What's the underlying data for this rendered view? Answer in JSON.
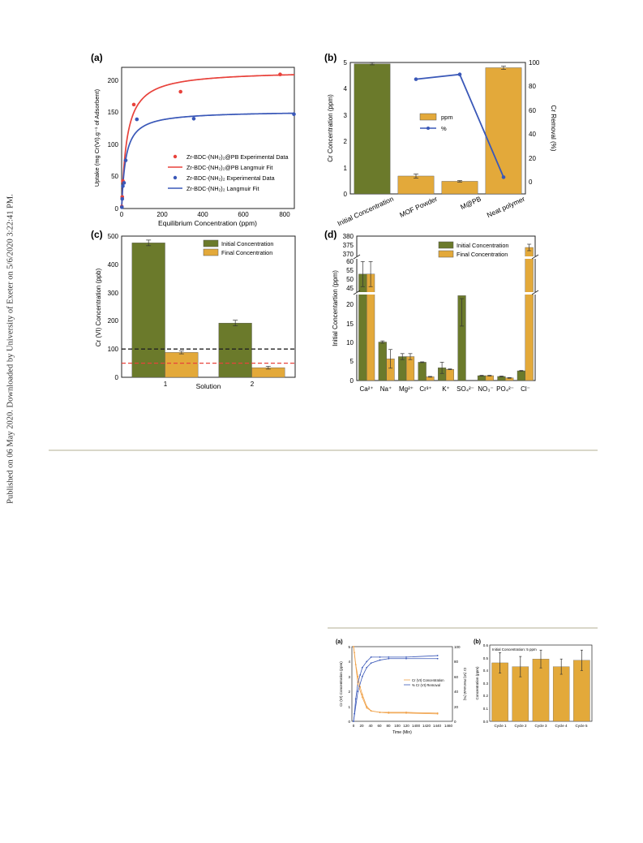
{
  "sidebar_text": "Published on 06 May 2020. Downloaded by University of Exeter on 5/6/2020 3:22:41 PM.",
  "colors": {
    "olive": "#6b7a2b",
    "gold": "#e3a93a",
    "red": "#e8423b",
    "blue": "#3a58b8",
    "orange": "#f0a24a"
  },
  "chart_data": [
    {
      "panel": "(a)",
      "type": "scatter",
      "xlabel": "Equilibrium Concentration (ppm)",
      "ylabel": "Uptake (mg Cr(VI).g⁻¹ of Adsorbent)",
      "xlim": [
        0,
        850
      ],
      "ylim": [
        0,
        220
      ],
      "xticks": [
        "0",
        "200",
        "400",
        "600",
        "800"
      ],
      "yticks": [
        "0",
        "50",
        "100",
        "150",
        "200"
      ],
      "legend": [
        "Zr-BDC-(NH₂)₂@PB Experimental Data",
        "Zr-BDC-(NH₂)₂@PB Langmuir Fit",
        "Zr-BDC-(NH₂)₂ Experimental Data",
        "Zr-BDC-(NH₂)₂ Langmuir Fit"
      ],
      "series": [
        {
          "x": [
            1,
            3,
            6,
            10,
            60,
            290,
            780
          ],
          "y": [
            3,
            18,
            43,
            40,
            162,
            182,
            209
          ]
        },
        {
          "qmax": 215,
          "K": 0.038
        },
        {
          "x": [
            1,
            3,
            6,
            12,
            20,
            75,
            355,
            848
          ],
          "y": [
            2,
            15,
            35,
            40,
            75,
            139,
            140,
            147
          ]
        },
        {
          "qmax": 152,
          "K": 0.05
        }
      ]
    },
    {
      "panel": "(b)",
      "type": "bar",
      "categories": [
        "Initial Concentration",
        "MOF Powder",
        "M@PB",
        "Neat polymer"
      ],
      "values": [
        4.95,
        0.68,
        0.48,
        4.8
      ],
      "errors": [
        0.04,
        0.08,
        0.03,
        0.06
      ],
      "line_values": [
        86,
        90,
        4
      ],
      "ylabel": "Cr Concentration (ppm)",
      "y2label": "Cr Removal (%)",
      "ylim": [
        0,
        5
      ],
      "y2lim": [
        -10,
        100
      ],
      "yticks": [
        "0",
        "1",
        "2",
        "3",
        "4",
        "5"
      ],
      "y2ticks": [
        "0",
        "20",
        "40",
        "60",
        "80",
        "100"
      ],
      "legend": [
        "ppm",
        "%"
      ]
    },
    {
      "panel": "(c)",
      "type": "bar",
      "categories": [
        "1",
        "2"
      ],
      "series": [
        {
          "name": "Initial Concentration",
          "values": [
            476,
            192
          ],
          "errors": [
            10,
            10
          ]
        },
        {
          "name": "Final Concentration",
          "values": [
            88,
            34
          ],
          "errors": [
            5,
            5
          ]
        }
      ],
      "xlabel": "Solution",
      "ylabel": "Cr (VI) Concentration (ppb)",
      "ylim": [
        0,
        500
      ],
      "yticks": [
        "0",
        "100",
        "200",
        "300",
        "400",
        "500"
      ],
      "hlines": [
        100,
        50
      ]
    },
    {
      "panel": "(d)",
      "type": "bar",
      "categories": [
        "Ca²⁺",
        "Na⁺",
        "Mg²⁺",
        "Cr³⁺",
        "K⁺",
        "SO₄²⁻",
        "NO₃⁻",
        "PO₄²⁻",
        "Cl⁻"
      ],
      "series": [
        {
          "name": "Initial Concentration",
          "values": [
            52.5,
            10.3,
            6.4,
            4.9,
            3.4,
            22.7,
            1.3,
            1.1,
            2.6
          ],
          "errors": [
            7,
            0.3,
            0.8,
            0.1,
            1.5,
            0.8,
            0.1,
            0.1,
            0.1
          ]
        },
        {
          "name": "Final Concentration",
          "values": [
            52.5,
            5.8,
            6.4,
            1.0,
            3.0,
            0,
            1.3,
            0.7,
            373
          ],
          "errors": [
            7,
            2.5,
            0.8,
            0.1,
            0.1,
            0,
            0.1,
            0.1,
            2
          ]
        }
      ],
      "ylabel": "Initial Concentartion (ppm)",
      "yticks_low": [
        "0",
        "5",
        "10",
        "15",
        "20"
      ],
      "yticks_mid": [
        "45",
        "50",
        "55",
        "60"
      ],
      "yticks_high": [
        "370",
        "375",
        "380"
      ]
    },
    {
      "panel": "(a)",
      "type": "line",
      "xlabel": "Time (Min)",
      "ylabel": "Cr (VI) Concentration (ppm)",
      "y2label": "Cr (VI) Removal (%)",
      "xticks": [
        "0",
        "20",
        "40",
        "60",
        "80",
        "100",
        "120",
        "1400",
        "1420",
        "1440",
        "1460"
      ],
      "yticks": [
        "0",
        "1",
        "2",
        "3",
        "4",
        "5"
      ],
      "y2ticks": [
        "0",
        "20",
        "40",
        "60",
        "80",
        "100"
      ],
      "legend": [
        "Cr (VI) Concentration",
        "% Cr (VI) Removal"
      ],
      "series": [
        {
          "t": [
            0,
            2,
            5,
            10,
            15,
            20,
            30,
            40,
            60,
            80,
            120,
            1440
          ],
          "y": [
            5.0,
            4.6,
            3.8,
            3.0,
            2.3,
            1.8,
            1.0,
            0.7,
            0.6,
            0.55,
            0.55,
            0.5
          ]
        },
        {
          "t": [
            0,
            2,
            5,
            10,
            15,
            20,
            30,
            40,
            60,
            80,
            120,
            1440
          ],
          "y": [
            0,
            10,
            30,
            52,
            62,
            72,
            80,
            86,
            86,
            86,
            86,
            88
          ]
        },
        {
          "t": [
            0,
            10,
            20,
            30,
            40,
            60,
            80,
            120,
            1440
          ],
          "y": [
            5.0,
            2.5,
            1.6,
            0.9,
            0.7,
            0.6,
            0.6,
            0.6,
            0.55
          ]
        },
        {
          "t": [
            0,
            10,
            20,
            30,
            40,
            60,
            80,
            120,
            1440
          ],
          "y": [
            0,
            40,
            60,
            72,
            78,
            82,
            84,
            84,
            84
          ]
        }
      ]
    },
    {
      "panel": "(b)",
      "type": "bar",
      "annotation": "Initial Concentration: 5 ppm",
      "categories": [
        "Cycle 1",
        "Cycle 2",
        "Cycle 3",
        "Cycle 4",
        "Cycle 5"
      ],
      "values": [
        0.46,
        0.43,
        0.49,
        0.43,
        0.48
      ],
      "errors": [
        0.08,
        0.08,
        0.07,
        0.06,
        0.08
      ],
      "ylabel": "Concentration (ppm)",
      "ylim": [
        0,
        0.6
      ],
      "yticks": [
        "0.0",
        "0.1",
        "0.2",
        "0.3",
        "0.4",
        "0.5",
        "0.6"
      ]
    }
  ]
}
